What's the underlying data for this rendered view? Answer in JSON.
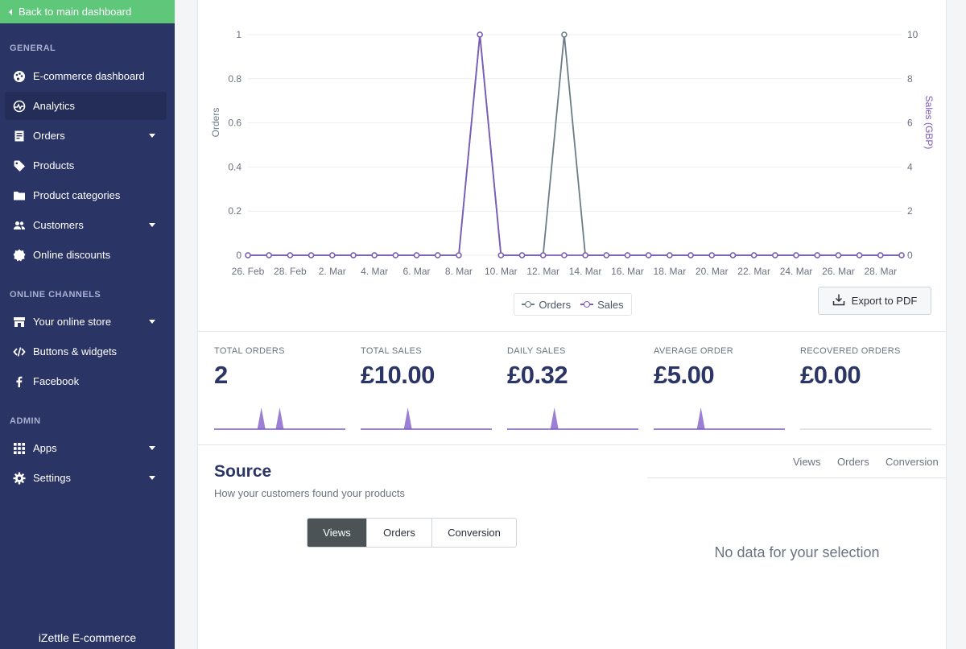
{
  "sidebar": {
    "back_label": "Back to main dashboard",
    "sections": {
      "general": "GENERAL",
      "online_channels": "ONLINE CHANNELS",
      "admin": "ADMIN"
    },
    "items": [
      {
        "label": "E-commerce dashboard",
        "icon": "palette-icon"
      },
      {
        "label": "Analytics",
        "icon": "analytics-icon",
        "active": true
      },
      {
        "label": "Orders",
        "icon": "orders-icon",
        "has_dropdown": true
      },
      {
        "label": "Products",
        "icon": "tag-icon"
      },
      {
        "label": "Product categories",
        "icon": "folder-icon"
      },
      {
        "label": "Customers",
        "icon": "users-icon",
        "has_dropdown": true
      },
      {
        "label": "Online discounts",
        "icon": "badge-icon"
      },
      {
        "label": "Your online store",
        "icon": "store-icon",
        "has_dropdown": true
      },
      {
        "label": "Buttons & widgets",
        "icon": "code-icon"
      },
      {
        "label": "Facebook",
        "icon": "facebook-icon"
      },
      {
        "label": "Apps",
        "icon": "grid-icon",
        "has_dropdown": true
      },
      {
        "label": "Settings",
        "icon": "gear-icon",
        "has_dropdown": true
      }
    ],
    "footer": "iZettle E-commerce"
  },
  "chart_data": {
    "type": "line",
    "x": [
      "26. Feb",
      "27. Feb",
      "28. Feb",
      "1. Mar",
      "2. Mar",
      "3. Mar",
      "4. Mar",
      "5. Mar",
      "6. Mar",
      "7. Mar",
      "8. Mar",
      "9. Mar",
      "10. Mar",
      "11. Mar",
      "12. Mar",
      "13. Mar",
      "14. Mar",
      "15. Mar",
      "16. Mar",
      "17. Mar",
      "18. Mar",
      "19. Mar",
      "20. Mar",
      "21. Mar",
      "22. Mar",
      "23. Mar",
      "24. Mar",
      "25. Mar",
      "26. Mar",
      "27. Mar",
      "28. Mar",
      "29. Mar"
    ],
    "tick_labels": [
      "26. Feb",
      "28. Feb",
      "2. Mar",
      "4. Mar",
      "6. Mar",
      "8. Mar",
      "10. Mar",
      "12. Mar",
      "14. Mar",
      "16. Mar",
      "18. Mar",
      "20. Mar",
      "22. Mar",
      "24. Mar",
      "26. Mar",
      "28. Mar"
    ],
    "series": [
      {
        "name": "Orders",
        "axis": "left",
        "color": "#6b7d86",
        "values": [
          0,
          0,
          0,
          0,
          0,
          0,
          0,
          0,
          0,
          0,
          0,
          1,
          0,
          0,
          0,
          1,
          0,
          0,
          0,
          0,
          0,
          0,
          0,
          0,
          0,
          0,
          0,
          0,
          0,
          0,
          0,
          0
        ]
      },
      {
        "name": "Sales",
        "axis": "right",
        "color": "#7b5cb8",
        "values": [
          0,
          0,
          0,
          0,
          0,
          0,
          0,
          0,
          0,
          0,
          0,
          10,
          0,
          0,
          0,
          0,
          0,
          0,
          0,
          0,
          0,
          0,
          0,
          0,
          0,
          0,
          0,
          0,
          0,
          0,
          0,
          0
        ]
      }
    ],
    "ylabel": "Orders",
    "y2label": "Sales (GBP)",
    "ylim": [
      0,
      1
    ],
    "y2lim": [
      0,
      10
    ],
    "yticks": [
      "0",
      "0.2",
      "0.4",
      "0.6",
      "0.8",
      "1"
    ],
    "y2ticks": [
      "0",
      "2",
      "4",
      "6",
      "8",
      "10"
    ],
    "grid": true,
    "legend": "bottom-center"
  },
  "export_label": "Export to PDF",
  "stats": [
    {
      "label": "TOTAL ORDERS",
      "value": "2",
      "spikes": [
        0.36,
        0.5
      ]
    },
    {
      "label": "TOTAL SALES",
      "value": "£10.00",
      "spikes": [
        0.36
      ]
    },
    {
      "label": "DAILY SALES",
      "value": "£0.32",
      "spikes": [
        0.36
      ]
    },
    {
      "label": "AVERAGE ORDER",
      "value": "£5.00",
      "spikes": [
        0.36
      ]
    },
    {
      "label": "RECOVERED ORDERS",
      "value": "£0.00",
      "spikes": []
    }
  ],
  "source": {
    "title": "Source",
    "subtitle": "How your customers found your products",
    "segments": [
      "Views",
      "Orders",
      "Conversion"
    ],
    "active_segment": "Views",
    "right_tabs": [
      "Views",
      "Orders",
      "Conversion"
    ],
    "empty_message": "No data for your selection"
  },
  "colors": {
    "sidebar_bg": "#2a3566",
    "back_link_bg": "#5ec77a",
    "orders_line": "#6b7d86",
    "sales_line": "#7b5cb8",
    "spark_fill": "#9b7fd4"
  }
}
